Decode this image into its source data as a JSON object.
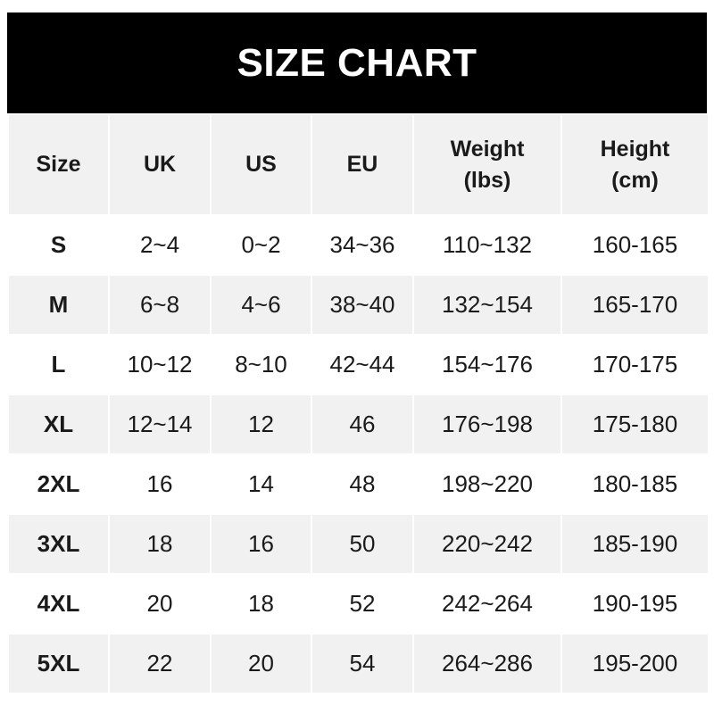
{
  "title": "SIZE CHART",
  "columns": [
    "Size",
    "UK",
    "US",
    "EU",
    "Weight\n(lbs)",
    "Height\n(cm)"
  ],
  "rows": [
    [
      "S",
      "2~4",
      "0~2",
      "34~36",
      "110~132",
      "160-165"
    ],
    [
      "M",
      "6~8",
      "4~6",
      "38~40",
      "132~154",
      "165-170"
    ],
    [
      "L",
      "10~12",
      "8~10",
      "42~44",
      "154~176",
      "170-175"
    ],
    [
      "XL",
      "12~14",
      "12",
      "46",
      "176~198",
      "175-180"
    ],
    [
      "2XL",
      "16",
      "14",
      "48",
      "198~220",
      "180-185"
    ],
    [
      "3XL",
      "18",
      "16",
      "50",
      "220~242",
      "185-190"
    ],
    [
      "4XL",
      "20",
      "18",
      "52",
      "242~264",
      "190-195"
    ],
    [
      "5XL",
      "22",
      "20",
      "54",
      "264~286",
      "195-200"
    ]
  ],
  "colors": {
    "banner": "#000000",
    "header_row": "#f1f1f1",
    "alt_row": "#f1f1f1"
  }
}
